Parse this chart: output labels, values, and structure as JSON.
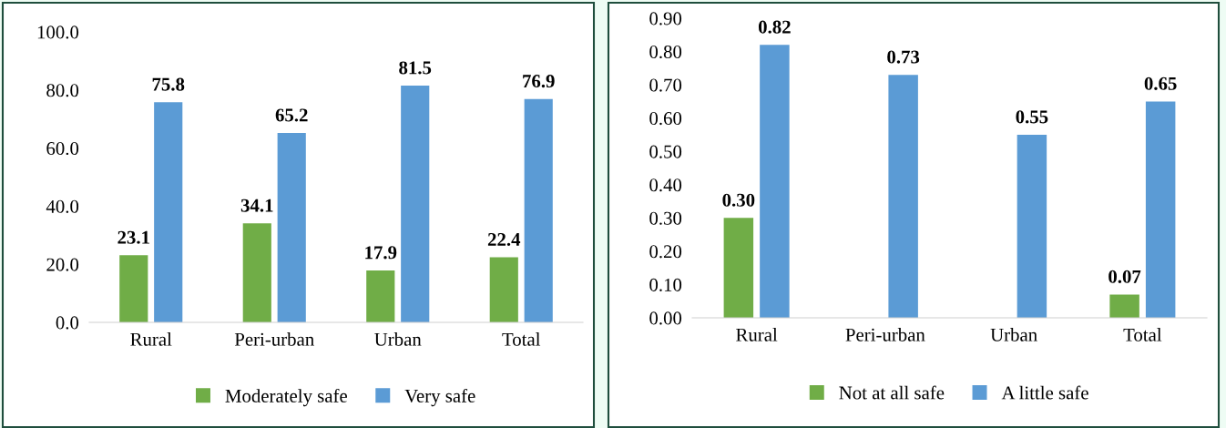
{
  "chart_data": [
    {
      "type": "bar",
      "categories": [
        "Rural",
        "Peri-urban",
        "Urban",
        "Total"
      ],
      "series": [
        {
          "name": "Moderately safe",
          "color": "#70ad47",
          "values": [
            23.1,
            34.1,
            17.9,
            22.4
          ],
          "value_labels": [
            "23.1",
            "34.1",
            "17.9",
            "22.4"
          ]
        },
        {
          "name": "Very safe",
          "color": "#5b9bd5",
          "values": [
            75.8,
            65.2,
            81.5,
            76.9
          ],
          "value_labels": [
            "75.8",
            "65.2",
            "81.5",
            "76.9"
          ]
        }
      ],
      "ylim": [
        0,
        100
      ],
      "yticks": [
        {
          "value": 0,
          "label": "0.0"
        },
        {
          "value": 20,
          "label": "20.0"
        },
        {
          "value": 40,
          "label": "40.0"
        },
        {
          "value": 60,
          "label": "60.0"
        },
        {
          "value": 80,
          "label": "80.0"
        },
        {
          "value": 100,
          "label": "100.0"
        }
      ],
      "grid": false,
      "legend": "bottom"
    },
    {
      "type": "bar",
      "categories": [
        "Rural",
        "Peri-urban",
        "Urban",
        "Total"
      ],
      "series": [
        {
          "name": "Not at all safe",
          "color": "#70ad47",
          "values": [
            0.3,
            null,
            null,
            0.07
          ],
          "value_labels": [
            "0.30",
            null,
            null,
            "0.07"
          ]
        },
        {
          "name": "A little safe",
          "color": "#5b9bd5",
          "values": [
            0.82,
            0.73,
            0.55,
            0.65
          ],
          "value_labels": [
            "0.82",
            "0.73",
            "0.55",
            "0.65"
          ]
        }
      ],
      "ylim": [
        0,
        0.9
      ],
      "yticks": [
        {
          "value": 0,
          "label": "0.00"
        },
        {
          "value": 0.1,
          "label": "0.10"
        },
        {
          "value": 0.2,
          "label": "0.20"
        },
        {
          "value": 0.3,
          "label": "0.30"
        },
        {
          "value": 0.4,
          "label": "0.40"
        },
        {
          "value": 0.5,
          "label": "0.50"
        },
        {
          "value": 0.6,
          "label": "0.60"
        },
        {
          "value": 0.7,
          "label": "0.70"
        },
        {
          "value": 0.8,
          "label": "0.80"
        },
        {
          "value": 0.9,
          "label": "0.90"
        }
      ],
      "grid": false,
      "legend": "bottom"
    }
  ]
}
